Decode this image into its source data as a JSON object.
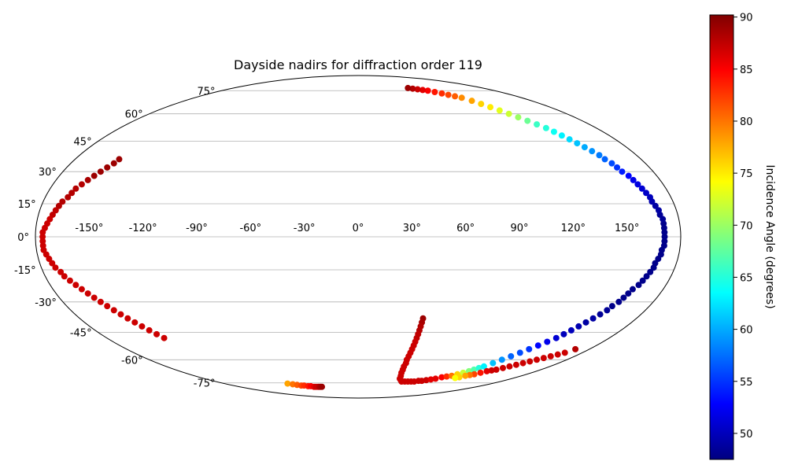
{
  "chart_data": {
    "type": "scatter",
    "title": "Dayside nadirs for diffraction order 119",
    "projection": "mollweide",
    "grid": true,
    "longitude_ticks": [
      "-150°",
      "-120°",
      "-90°",
      "-60°",
      "-30°",
      "0°",
      "30°",
      "60°",
      "90°",
      "120°",
      "150°"
    ],
    "longitude_tick_values": [
      -150,
      -120,
      -90,
      -60,
      -30,
      0,
      30,
      60,
      90,
      120,
      150
    ],
    "latitude_ticks": [
      "75°",
      "60°",
      "45°",
      "30°",
      "15°",
      "0°",
      "-15°",
      "-30°",
      "-45°",
      "-60°",
      "-75°"
    ],
    "latitude_tick_values": [
      75,
      60,
      45,
      30,
      15,
      0,
      -15,
      -30,
      -45,
      -60,
      -75
    ],
    "colorbar": {
      "label": "Incidence Angle (degrees)",
      "colormap": "jet",
      "range": [
        47.5,
        90.2
      ],
      "ticks": [
        "50",
        "55",
        "60",
        "65",
        "70",
        "75",
        "80",
        "85",
        "90"
      ],
      "tick_values": [
        50,
        55,
        60,
        65,
        70,
        75,
        80,
        85,
        90
      ]
    },
    "series": [
      {
        "points": [
          [
            -152,
            36,
            89
          ],
          [
            -153,
            34,
            89
          ],
          [
            -155,
            32,
            89
          ],
          [
            -157,
            30,
            89
          ],
          [
            -159,
            28,
            89
          ],
          [
            -161,
            26,
            88.5
          ],
          [
            -163,
            24,
            88
          ],
          [
            -165,
            22,
            88
          ],
          [
            -166,
            20,
            88
          ],
          [
            -167,
            18,
            88
          ],
          [
            -169,
            16,
            88
          ],
          [
            -170,
            14,
            88
          ],
          [
            -171,
            12,
            87.5
          ],
          [
            -172,
            10,
            87.5
          ],
          [
            -173,
            8,
            87
          ],
          [
            -174,
            6,
            87
          ],
          [
            -175,
            4,
            87
          ],
          [
            -176,
            2,
            87
          ],
          [
            -176,
            0,
            87
          ],
          [
            -176,
            -2,
            87
          ],
          [
            -176,
            -4,
            87
          ],
          [
            -176,
            -6,
            87
          ],
          [
            -175,
            -8,
            87
          ],
          [
            -174,
            -10,
            87
          ],
          [
            -173,
            -12,
            87
          ],
          [
            -172,
            -14,
            87
          ],
          [
            -170,
            -16,
            87
          ],
          [
            -169,
            -18,
            87
          ],
          [
            -167,
            -20,
            87
          ],
          [
            -165,
            -22,
            87
          ],
          [
            -163,
            -24,
            87
          ],
          [
            -161,
            -26,
            87
          ],
          [
            -159,
            -28,
            87
          ],
          [
            -157,
            -30,
            87
          ],
          [
            -155,
            -32,
            87
          ],
          [
            -153,
            -34,
            87
          ],
          [
            -151,
            -36,
            87
          ],
          [
            -149,
            -38,
            87
          ],
          [
            -147,
            -40,
            87
          ],
          [
            -145,
            -42,
            87
          ],
          [
            -143,
            -44,
            87
          ],
          [
            -141,
            -46,
            87
          ],
          [
            -139,
            -48,
            87
          ]
        ]
      },
      {
        "points": [
          [
            -95,
            -75.5,
            78
          ],
          [
            -90,
            -76,
            80
          ],
          [
            -86,
            -76.5,
            81
          ],
          [
            -82,
            -77,
            82
          ],
          [
            -78,
            -77,
            83
          ],
          [
            -74,
            -77.5,
            84
          ],
          [
            -70,
            -77.5,
            85
          ],
          [
            -67,
            -78,
            86
          ],
          [
            -64,
            -78,
            87
          ],
          [
            -61,
            -78,
            87
          ],
          [
            -59,
            -78,
            88
          ],
          [
            -57,
            -78,
            88.5
          ],
          [
            -55,
            -78,
            89
          ]
        ]
      },
      {
        "points": [
          [
            42,
            -38,
            89
          ],
          [
            42,
            -40,
            88.5
          ],
          [
            42,
            -42,
            88
          ],
          [
            42,
            -44,
            88
          ],
          [
            42,
            -46,
            87.5
          ],
          [
            42,
            -48,
            87.5
          ],
          [
            42,
            -50,
            87
          ],
          [
            42,
            -52,
            87
          ],
          [
            42,
            -54,
            87
          ],
          [
            42,
            -56,
            87
          ],
          [
            42,
            -58,
            87
          ],
          [
            42,
            -60,
            87
          ],
          [
            43,
            -62,
            87
          ],
          [
            43,
            -64,
            87
          ],
          [
            44,
            -66,
            87
          ],
          [
            45,
            -68,
            87
          ],
          [
            47,
            -70,
            87
          ],
          [
            49,
            -72,
            87
          ],
          [
            52,
            -73,
            87
          ],
          [
            55,
            -74,
            87
          ],
          [
            59,
            -74,
            87
          ],
          [
            63,
            -74,
            87
          ],
          [
            67,
            -74,
            87
          ],
          [
            71,
            -74,
            87
          ],
          [
            75,
            -73.5,
            87
          ],
          [
            79,
            -73.5,
            87
          ],
          [
            83,
            -73,
            87
          ],
          [
            87,
            -72.5,
            86
          ],
          [
            91,
            -72,
            86
          ],
          [
            95,
            -71,
            85
          ],
          [
            99,
            -70.5,
            83
          ],
          [
            103,
            -70,
            80
          ],
          [
            106,
            -69,
            76
          ],
          [
            109,
            -68,
            72
          ],
          [
            112,
            -67,
            69
          ],
          [
            114,
            -66,
            67
          ],
          [
            116,
            -65,
            65
          ],
          [
            118,
            -64,
            63
          ],
          [
            121,
            -62,
            61
          ],
          [
            124,
            -60,
            59
          ],
          [
            127,
            -58,
            57
          ],
          [
            130,
            -56,
            56
          ],
          [
            133,
            -54,
            55
          ],
          [
            136,
            -52,
            53
          ],
          [
            139,
            -50,
            52
          ],
          [
            142,
            -48,
            51
          ],
          [
            144,
            -46,
            50
          ],
          [
            146,
            -44,
            50
          ],
          [
            148,
            -42,
            49.5
          ],
          [
            150,
            -40,
            49
          ],
          [
            152,
            -38,
            49
          ],
          [
            154,
            -36,
            48.5
          ],
          [
            156,
            -34,
            48.5
          ],
          [
            157,
            -32,
            48
          ],
          [
            159,
            -30,
            48
          ],
          [
            160,
            -28,
            48
          ],
          [
            161,
            -26,
            48
          ],
          [
            162,
            -24,
            48
          ],
          [
            164,
            -22,
            48
          ],
          [
            165,
            -20,
            48
          ],
          [
            166,
            -18,
            48
          ],
          [
            167,
            -16,
            48
          ],
          [
            168,
            -14,
            48
          ],
          [
            168,
            -12,
            48
          ],
          [
            169,
            -10,
            48
          ],
          [
            170,
            -8,
            48
          ],
          [
            170,
            -6,
            48
          ],
          [
            171,
            -4,
            48
          ],
          [
            171,
            -2,
            48
          ],
          [
            171,
            0,
            48
          ],
          [
            171,
            2,
            48
          ],
          [
            171,
            4,
            48
          ],
          [
            171,
            6,
            48
          ],
          [
            171,
            8,
            48.5
          ],
          [
            170,
            10,
            48.5
          ],
          [
            170,
            12,
            49
          ],
          [
            169,
            14,
            49
          ],
          [
            168,
            16,
            49.5
          ],
          [
            168,
            18,
            50
          ],
          [
            167,
            20,
            50.5
          ],
          [
            166,
            22,
            51
          ],
          [
            165,
            24,
            51.5
          ],
          [
            164,
            26,
            52
          ],
          [
            163,
            28,
            53
          ],
          [
            161,
            30,
            54
          ],
          [
            160,
            32,
            55
          ],
          [
            159,
            34,
            56
          ],
          [
            157,
            36,
            57
          ],
          [
            156,
            38,
            58
          ],
          [
            154,
            40,
            59
          ],
          [
            152,
            42,
            60
          ],
          [
            150,
            44,
            61
          ],
          [
            148,
            46,
            62
          ],
          [
            146,
            48,
            63
          ],
          [
            144,
            50,
            64
          ],
          [
            142,
            52,
            65
          ],
          [
            139,
            54,
            66
          ],
          [
            136,
            56,
            68
          ],
          [
            133,
            58,
            70
          ],
          [
            130,
            60,
            72
          ],
          [
            127,
            62,
            73
          ],
          [
            124,
            64,
            75
          ],
          [
            121,
            66,
            76
          ],
          [
            118,
            68,
            78
          ],
          [
            114,
            70,
            79
          ],
          [
            110,
            71,
            81
          ],
          [
            106,
            72,
            82
          ],
          [
            102,
            73,
            83
          ],
          [
            97,
            74,
            84
          ],
          [
            92,
            75,
            85
          ],
          [
            87,
            75.5,
            86
          ],
          [
            82,
            76,
            87
          ],
          [
            77,
            76.5,
            88
          ],
          [
            72,
            77,
            89
          ]
        ]
      },
      {
        "points": [
          [
            169,
            -54,
            88
          ],
          [
            166,
            -56,
            87
          ],
          [
            163,
            -57,
            87
          ],
          [
            160,
            -58,
            87
          ],
          [
            157,
            -59,
            87
          ],
          [
            154,
            -60,
            87
          ],
          [
            151,
            -61,
            87
          ],
          [
            148,
            -62,
            87
          ],
          [
            145,
            -63,
            87
          ],
          [
            142,
            -64,
            87
          ],
          [
            139,
            -65,
            87
          ],
          [
            136,
            -66,
            87
          ],
          [
            133,
            -66.5,
            87
          ],
          [
            130,
            -67,
            86
          ],
          [
            127,
            -68,
            84
          ],
          [
            124,
            -69,
            82
          ],
          [
            121,
            -69.5,
            80
          ],
          [
            118,
            -70,
            78
          ],
          [
            115,
            -71,
            76
          ],
          [
            112,
            -71.5,
            74
          ]
        ]
      }
    ]
  }
}
